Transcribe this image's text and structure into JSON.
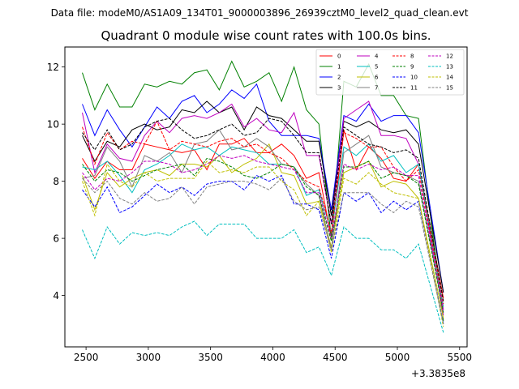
{
  "header": "Data file: modeM0/AS1A09_134T01_9000003896_26939cztM0_level2_quad_clean.evt",
  "chart_data": {
    "type": "line",
    "title": "Quadrant 0 module wise count rates with 100.0s bins.",
    "xlabel": "",
    "ylabel": "",
    "x_offset_label": "+3.3835e8",
    "xlim": [
      2330,
      5560
    ],
    "ylim": [
      2.2,
      12.7
    ],
    "xticks": [
      2500,
      3000,
      3500,
      4000,
      4500,
      5000,
      5500
    ],
    "xtick_labels": [
      "2500",
      "3000",
      "3500",
      "4000",
      "4500",
      "5000",
      "5500"
    ],
    "yticks": [
      4,
      6,
      8,
      10,
      12
    ],
    "ytick_labels": [
      "4",
      "6",
      "8",
      "10",
      "12"
    ],
    "grid": false,
    "legend_position": "top-right",
    "x": [
      2470,
      2570,
      2670,
      2770,
      2870,
      2970,
      3070,
      3170,
      3270,
      3370,
      3470,
      3570,
      3670,
      3770,
      3870,
      3970,
      4070,
      4170,
      4270,
      4370,
      4470,
      4570,
      4670,
      4770,
      4870,
      4970,
      5070,
      5170,
      5370
    ],
    "series": [
      {
        "name": "0",
        "color": "#ff0000",
        "dash": "solid",
        "values": [
          8.8,
          8.1,
          8.7,
          8.4,
          8.4,
          9.3,
          9.2,
          9.1,
          9.0,
          9.1,
          8.4,
          9.3,
          9.3,
          9.5,
          9.0,
          9.0,
          9.3,
          8.9,
          8.1,
          8.3,
          6.0,
          9.8,
          8.4,
          9.2,
          8.8,
          8.1,
          8.0,
          8.6,
          3.9
        ]
      },
      {
        "name": "1",
        "color": "#008000",
        "dash": "solid",
        "values": [
          11.8,
          10.5,
          11.4,
          10.6,
          10.6,
          11.4,
          11.3,
          11.5,
          11.4,
          11.8,
          11.9,
          11.2,
          12.2,
          11.3,
          11.5,
          11.8,
          10.8,
          12.0,
          10.5,
          10.0,
          6.0,
          11.5,
          11.3,
          12.1,
          11.0,
          11.0,
          10.3,
          10.2,
          3.1
        ]
      },
      {
        "name": "2",
        "color": "#0000ff",
        "dash": "solid",
        "values": [
          10.7,
          9.6,
          10.5,
          9.8,
          9.2,
          9.9,
          10.6,
          10.2,
          10.8,
          11.0,
          10.4,
          10.7,
          11.2,
          10.9,
          11.4,
          10.1,
          9.6,
          9.6,
          9.6,
          9.5,
          7.0,
          10.3,
          10.1,
          10.7,
          10.1,
          10.3,
          10.3,
          9.7,
          4.1
        ]
      },
      {
        "name": "3",
        "color": "#000000",
        "dash": "solid",
        "values": [
          9.6,
          8.7,
          9.4,
          9.2,
          9.8,
          10.0,
          9.8,
          9.9,
          10.5,
          10.4,
          10.8,
          10.4,
          10.6,
          9.8,
          10.6,
          10.3,
          10.2,
          9.8,
          9.4,
          9.4,
          6.8,
          10.1,
          9.9,
          10.1,
          9.8,
          9.7,
          9.8,
          9.3,
          4.1
        ]
      },
      {
        "name": "4",
        "color": "#bf00bf",
        "dash": "solid",
        "values": [
          10.4,
          8.3,
          9.3,
          8.8,
          8.7,
          9.6,
          10.1,
          9.7,
          10.2,
          10.3,
          10.2,
          10.4,
          10.7,
          9.9,
          10.2,
          9.8,
          9.7,
          10.4,
          8.9,
          8.9,
          6.5,
          10.2,
          10.5,
          10.8,
          9.6,
          9.6,
          9.5,
          8.6,
          3.3
        ]
      },
      {
        "name": "5",
        "color": "#00bfbf",
        "dash": "solid",
        "values": [
          8.5,
          8.4,
          8.7,
          8.2,
          7.6,
          8.4,
          8.6,
          8.9,
          9.3,
          9.1,
          9.2,
          8.9,
          9.2,
          9.1,
          9.0,
          8.6,
          8.6,
          8.5,
          7.5,
          7.7,
          6.2,
          9.2,
          8.9,
          9.3,
          8.7,
          8.9,
          8.3,
          8.6,
          3.6
        ]
      },
      {
        "name": "6",
        "color": "#bfbf00",
        "dash": "solid",
        "values": [
          8.2,
          7.0,
          8.3,
          7.8,
          8.1,
          8.3,
          8.4,
          8.2,
          8.6,
          8.6,
          8.5,
          8.9,
          8.3,
          8.6,
          8.8,
          9.3,
          8.3,
          8.2,
          7.2,
          7.3,
          5.7,
          8.3,
          8.5,
          8.7,
          7.8,
          8.0,
          7.9,
          7.4,
          3.2
        ]
      },
      {
        "name": "7",
        "color": "#808080",
        "dash": "solid",
        "values": [
          8.1,
          8.2,
          9.2,
          8.7,
          7.8,
          8.9,
          8.7,
          9.0,
          8.3,
          9.3,
          9.4,
          9.8,
          9.1,
          9.2,
          9.5,
          9.2,
          8.6,
          8.5,
          7.9,
          7.5,
          5.6,
          9.0,
          9.3,
          9.6,
          8.5,
          8.3,
          8.2,
          8.0,
          3.5
        ]
      },
      {
        "name": "8",
        "color": "#ff0000",
        "dash": "dashed",
        "values": [
          9.9,
          8.6,
          9.7,
          9.1,
          9.4,
          9.3,
          10.1,
          9.1,
          9.4,
          9.3,
          9.2,
          9.4,
          9.5,
          9.2,
          9.3,
          9.0,
          8.8,
          8.4,
          8.0,
          7.8,
          6.2,
          9.7,
          9.5,
          9.2,
          9.2,
          8.5,
          8.0,
          8.4,
          3.7
        ]
      },
      {
        "name": "9",
        "color": "#008000",
        "dash": "dashed",
        "values": [
          8.6,
          8.0,
          8.4,
          8.3,
          8.0,
          8.2,
          8.4,
          8.5,
          8.6,
          8.2,
          8.8,
          8.7,
          8.5,
          8.2,
          8.1,
          8.3,
          8.6,
          8.5,
          7.8,
          7.5,
          5.9,
          8.5,
          8.5,
          8.7,
          8.1,
          8.3,
          8.2,
          7.9,
          3.4
        ]
      },
      {
        "name": "10",
        "color": "#0000ff",
        "dash": "dashed",
        "values": [
          7.7,
          7.1,
          7.8,
          6.9,
          7.1,
          7.5,
          7.9,
          7.6,
          7.8,
          7.5,
          7.9,
          8.0,
          8.0,
          7.7,
          8.2,
          8.0,
          8.2,
          7.2,
          7.2,
          7.0,
          5.3,
          7.6,
          7.3,
          7.6,
          6.9,
          7.3,
          7.0,
          7.3,
          3.0
        ]
      },
      {
        "name": "11",
        "color": "#000000",
        "dash": "dashed",
        "values": [
          9.7,
          9.1,
          9.8,
          9.1,
          9.3,
          9.9,
          10.1,
          10.2,
          9.8,
          9.5,
          9.6,
          9.8,
          10.0,
          9.6,
          9.7,
          10.2,
          10.1,
          9.6,
          9.0,
          9.0,
          6.5,
          9.9,
          9.6,
          9.3,
          9.2,
          9.0,
          9.1,
          8.8,
          3.8
        ]
      },
      {
        "name": "12",
        "color": "#bf00bf",
        "dash": "dashed",
        "values": [
          8.3,
          7.7,
          8.1,
          8.0,
          8.3,
          8.7,
          8.7,
          8.6,
          8.3,
          8.4,
          8.6,
          8.9,
          8.8,
          8.9,
          8.7,
          8.6,
          8.5,
          8.4,
          7.6,
          7.6,
          6.0,
          8.6,
          8.4,
          8.6,
          8.4,
          8.5,
          8.2,
          8.2,
          3.5
        ]
      },
      {
        "name": "13",
        "color": "#00bfbf",
        "dash": "dashed",
        "values": [
          6.3,
          5.3,
          6.4,
          5.8,
          6.2,
          6.1,
          6.2,
          6.1,
          6.4,
          6.6,
          6.1,
          6.5,
          6.5,
          6.5,
          6.0,
          6.0,
          6.0,
          6.3,
          5.5,
          5.7,
          4.7,
          6.4,
          6.0,
          6.0,
          5.6,
          5.6,
          5.3,
          5.8,
          2.7
        ]
      },
      {
        "name": "14",
        "color": "#bfbf00",
        "dash": "dashed",
        "values": [
          8.0,
          6.8,
          8.6,
          8.0,
          7.8,
          8.3,
          8.0,
          8.1,
          8.1,
          8.1,
          8.7,
          8.3,
          8.4,
          8.3,
          8.5,
          8.5,
          8.0,
          7.7,
          6.8,
          7.3,
          5.5,
          8.1,
          7.9,
          8.3,
          7.9,
          7.6,
          7.5,
          7.4,
          2.9
        ]
      },
      {
        "name": "15",
        "color": "#808080",
        "dash": "dashed",
        "values": [
          8.1,
          7.6,
          8.0,
          7.4,
          7.2,
          7.6,
          7.3,
          7.4,
          7.8,
          7.2,
          7.8,
          7.9,
          8.0,
          8.0,
          7.9,
          7.7,
          8.1,
          7.3,
          7.0,
          7.1,
          5.6,
          7.6,
          7.6,
          7.6,
          7.2,
          6.9,
          7.3,
          7.1,
          3.0
        ]
      }
    ]
  }
}
